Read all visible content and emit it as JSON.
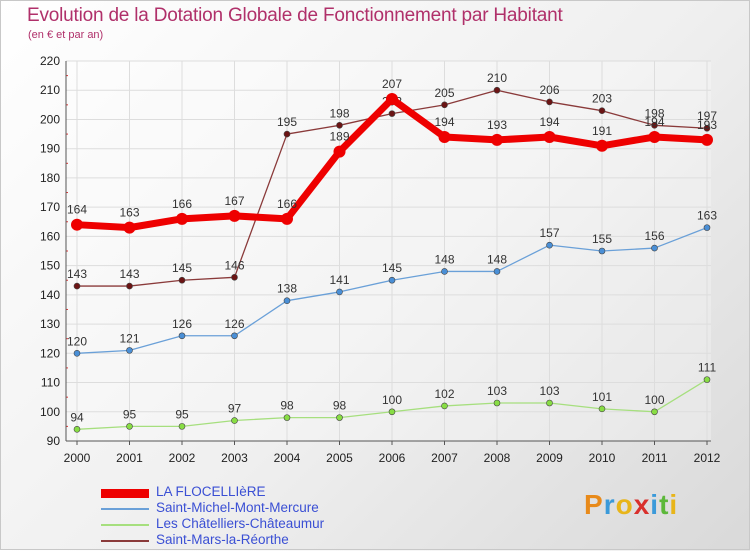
{
  "title": "Evolution de la Dotation Globale de Fonctionnement par Habitant",
  "subtitle": "(en € et par an)",
  "brand": {
    "letters": [
      "P",
      "r",
      "o",
      "x",
      "i",
      "t",
      "i"
    ],
    "colors": [
      "#e88a1a",
      "#3b9ad9",
      "#e8b51a",
      "#d9302c",
      "#3b9ad9",
      "#5cb83a",
      "#e8b51a"
    ]
  },
  "chart_data": {
    "type": "line",
    "title": "Evolution de la Dotation Globale de Fonctionnement par Habitant",
    "subtitle": "(en € et par an)",
    "x": [
      "2000",
      "2001",
      "2002",
      "2003",
      "2004",
      "2005",
      "2006",
      "2007",
      "2008",
      "2009",
      "2010",
      "2011",
      "2012"
    ],
    "ylim": [
      90,
      220
    ],
    "yticks": [
      90,
      100,
      110,
      120,
      130,
      140,
      150,
      160,
      170,
      180,
      190,
      200,
      210,
      220
    ],
    "grid": true,
    "legend_position": "bottom-left",
    "series": [
      {
        "name": "LA FLOCELLIèRE",
        "color": "#ee0000",
        "marker": "#ee0000",
        "width": 7,
        "radius": 6,
        "values": [
          164,
          163,
          166,
          167,
          166,
          189,
          207,
          194,
          193,
          194,
          191,
          194,
          193
        ]
      },
      {
        "name": "Saint-Michel-Mont-Mercure",
        "color": "#6aa0d8",
        "marker": "#4a8fd6",
        "width": 1.3,
        "radius": 3,
        "values": [
          120,
          121,
          126,
          126,
          138,
          141,
          145,
          148,
          148,
          157,
          155,
          156,
          163
        ]
      },
      {
        "name": "Les Châtelliers-Châteaumur",
        "color": "#a6df7e",
        "marker": "#88dd44",
        "width": 1.3,
        "radius": 3,
        "values": [
          94,
          95,
          95,
          97,
          98,
          98,
          100,
          102,
          103,
          103,
          101,
          100,
          111
        ]
      },
      {
        "name": "Saint-Mars-la-Réorthe",
        "color": "#8a3a3a",
        "marker": "#6b1414",
        "width": 1.3,
        "radius": 3,
        "values": [
          143,
          143,
          145,
          146,
          195,
          198,
          202,
          205,
          210,
          206,
          203,
          198,
          197
        ]
      }
    ]
  }
}
